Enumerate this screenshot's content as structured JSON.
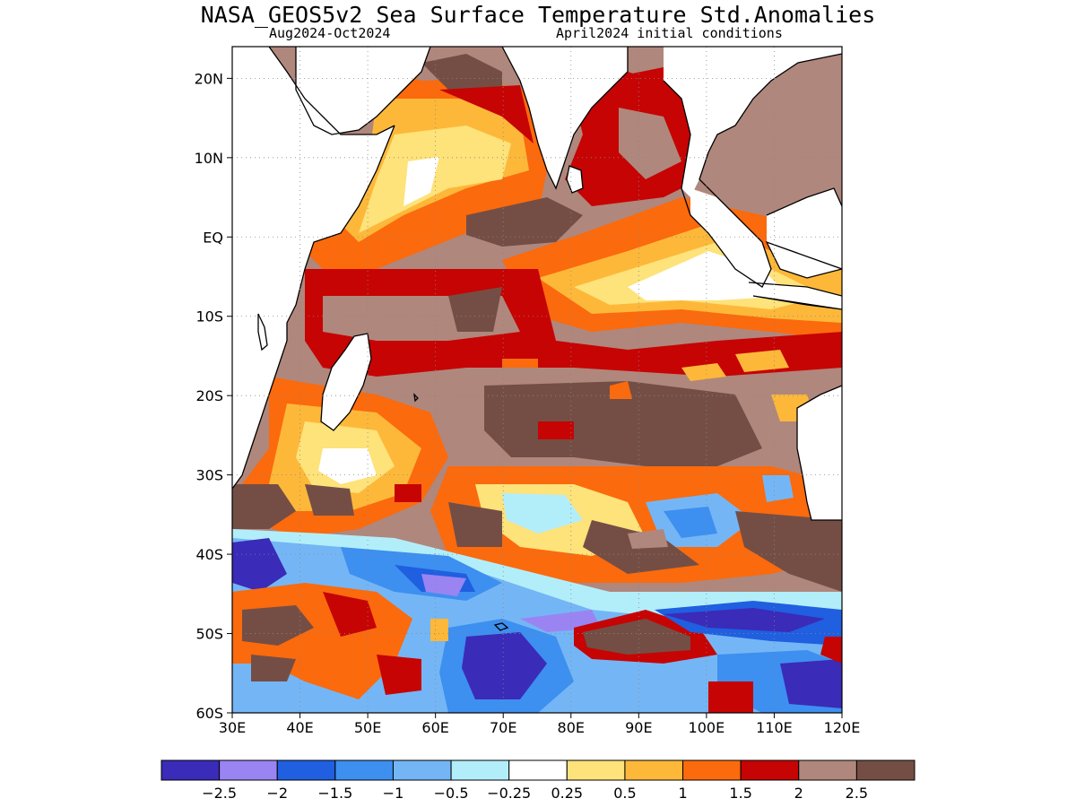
{
  "title": "NASA_GEOS5v2 Sea Surface Temperature Std.Anomalies",
  "subtitle_left": "Aug2024-Oct2024",
  "subtitle_right": "April2024 initial conditions",
  "map": {
    "lon_range": [
      30,
      120
    ],
    "lat_range": [
      -60,
      24
    ],
    "lat_ticks": [
      "20N",
      "10N",
      "EQ",
      "10S",
      "20S",
      "30S",
      "40S",
      "50S",
      "60S"
    ],
    "lon_ticks": [
      "30E",
      "40E",
      "50E",
      "60E",
      "70E",
      "80E",
      "90E",
      "100E",
      "110E",
      "120E"
    ]
  },
  "colorbar": {
    "colors": [
      "#3a2bb8",
      "#9a84f2",
      "#1f5fe0",
      "#3d8ff0",
      "#74b6f5",
      "#b2eefa",
      "#ffffff",
      "#fee27a",
      "#fdb83a",
      "#fb6a0d",
      "#c60404",
      "#b0877c",
      "#744e45"
    ],
    "labels": [
      "−2.5",
      "−2",
      "−1.5",
      "−1",
      "−0.5",
      "−0.25",
      "0.25",
      "0.5",
      "1",
      "1.5",
      "2",
      "2.5"
    ]
  },
  "palette": {
    "deep_blue": "#3a2bb8",
    "lavender": "#9a84f2",
    "blue": "#1f5fe0",
    "mid_blue": "#3d8ff0",
    "light_blue": "#74b6f5",
    "pale_cyan": "#b2eefa",
    "white": "#ffffff",
    "pale_yellow": "#fee27a",
    "orange_yellow": "#fdb83a",
    "orange": "#fb6a0d",
    "red": "#c60404",
    "tan": "#b0877c",
    "brown": "#744e45"
  }
}
